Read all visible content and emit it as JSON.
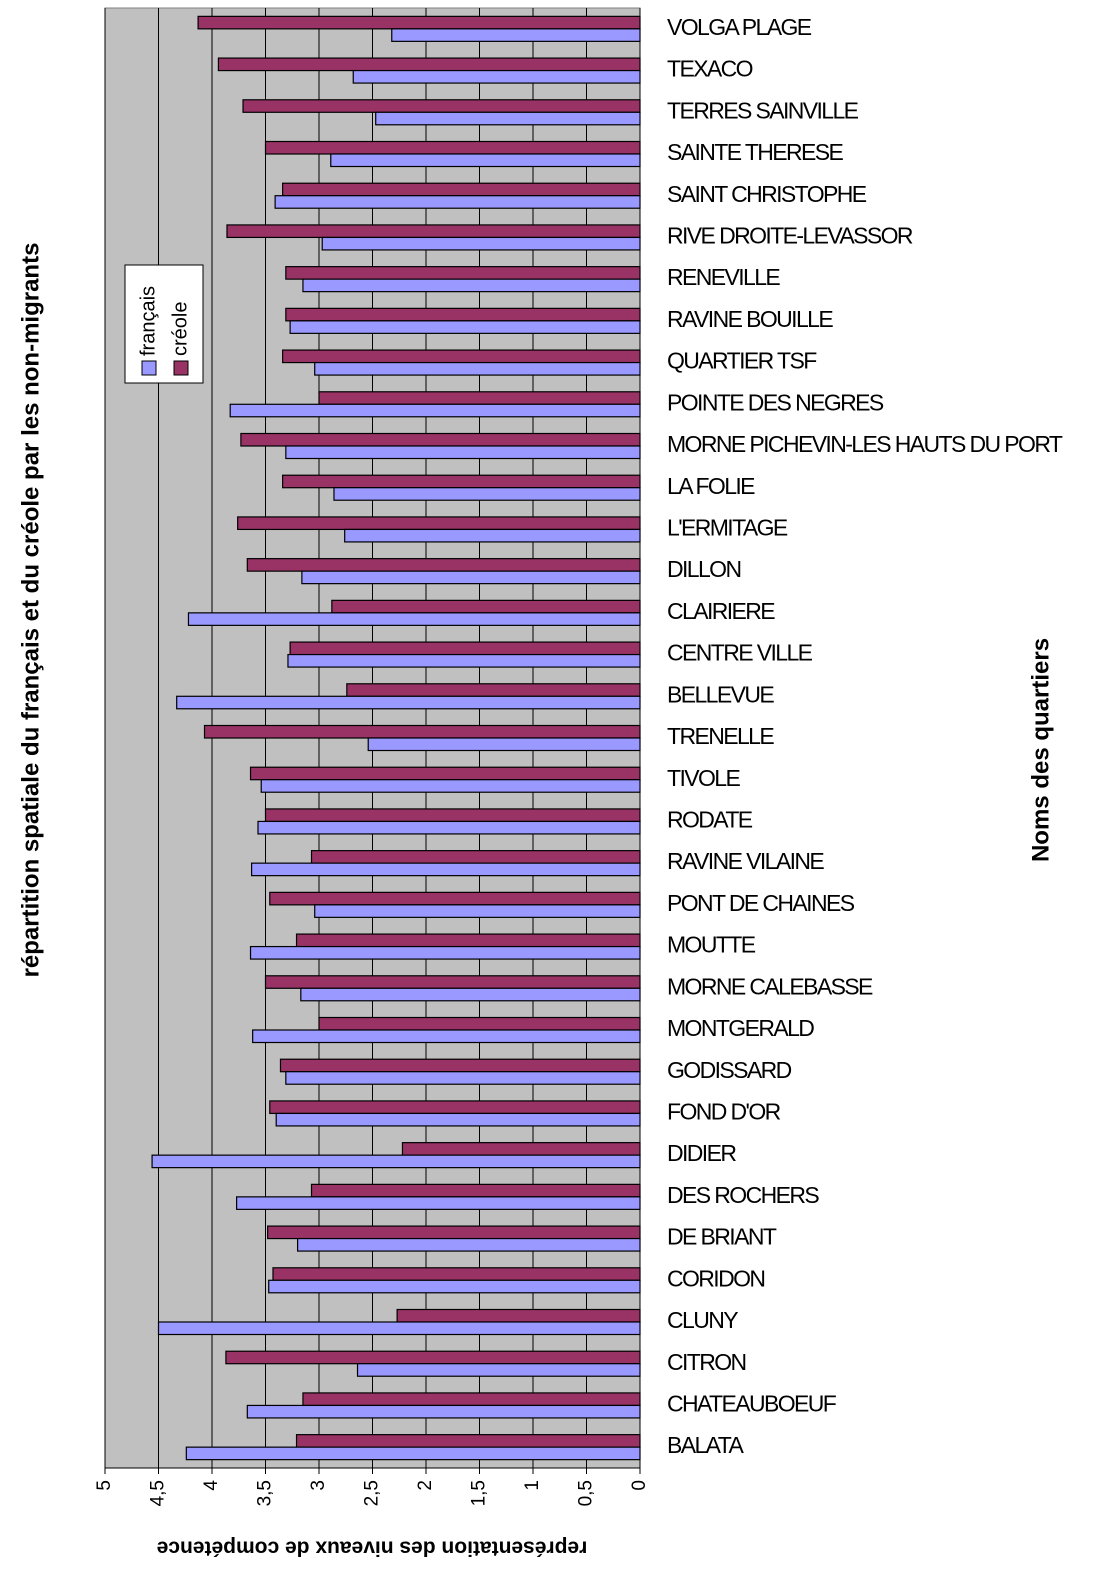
{
  "chart_data": {
    "type": "bar",
    "orientation": "horizontal",
    "title": "répartition spatiale du français et du créole  par les non-migrants",
    "y_axis_label": "représentation des niveaux de compétence",
    "x_axis_label": "Noms des quartiers",
    "categories": [
      "BALATA",
      "CHATEAUBOEUF",
      "CITRON",
      "CLUNY",
      "CORIDON",
      "DE BRIANT",
      "DES ROCHERS",
      "DIDIER",
      "FOND D'OR",
      "GODISSARD",
      "MONTGERALD",
      "MORNE CALEBASSE",
      "MOUTTE",
      "PONT DE CHAINES",
      "RAVINE VILAINE",
      "RODATE",
      "TIVOLE",
      "TRENELLE",
      "BELLEVUE",
      "CENTRE VILLE",
      "CLAIRIERE",
      "DILLON",
      "L'ERMITAGE",
      "LA FOLIE",
      "MORNE PICHEVIN-LES HAUTS DU PORT",
      "POINTE DES NEGRES",
      "QUARTIER TSF",
      "RAVINE BOUILLE",
      "RENEVILLE",
      "RIVE DROITE-LEVASSOR",
      "SAINT CHRISTOPHE",
      "SAINTE THERESE",
      "TERRES SAINVILLE",
      "TEXACO",
      "VOLGA PLAGE"
    ],
    "series": [
      {
        "name": "français",
        "color": "#9999ff",
        "values": [
          4.24,
          3.67,
          2.64,
          4.5,
          3.47,
          3.2,
          3.77,
          4.56,
          3.4,
          3.31,
          3.62,
          3.17,
          3.64,
          3.04,
          3.63,
          3.57,
          3.54,
          2.54,
          4.33,
          3.29,
          4.22,
          3.16,
          2.76,
          2.86,
          3.31,
          3.83,
          3.04,
          3.27,
          3.15,
          2.97,
          3.41,
          2.89,
          2.47,
          2.68,
          2.32
        ]
      },
      {
        "name": "créole",
        "color": "#993366",
        "values": [
          3.21,
          3.15,
          3.87,
          2.27,
          3.43,
          3.48,
          3.07,
          2.22,
          3.46,
          3.36,
          3.0,
          3.5,
          3.21,
          3.46,
          3.07,
          3.5,
          3.64,
          4.07,
          2.74,
          3.27,
          2.88,
          3.67,
          3.76,
          3.34,
          3.73,
          3.0,
          3.34,
          3.31,
          3.31,
          3.86,
          3.34,
          3.5,
          3.71,
          3.94,
          4.13
        ]
      }
    ],
    "ylim": [
      0,
      5
    ],
    "yticks": [
      0,
      {
        "value": 0.5,
        "label": "0,5"
      },
      1,
      {
        "value": 1.5,
        "label": "1,5"
      },
      2,
      {
        "value": 2.5,
        "label": "2,5"
      },
      3,
      {
        "value": 3.5,
        "label": "3,5"
      },
      4,
      {
        "value": 4.5,
        "label": "4,5"
      },
      5
    ],
    "grid": true
  }
}
